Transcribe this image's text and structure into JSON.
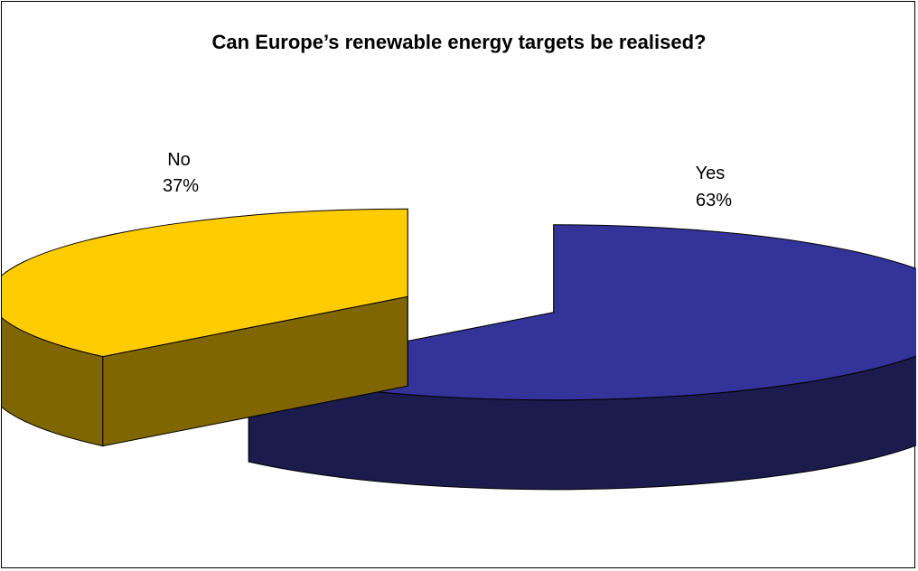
{
  "chart_data": {
    "type": "pie",
    "title": "Can Europe’s renewable energy targets be realised?",
    "three_d": true,
    "exploded": true,
    "slices": [
      {
        "label": "Yes",
        "percent_label": "63%",
        "value": 63,
        "color": "#333399",
        "side_color": "#1B1B4E"
      },
      {
        "label": "No",
        "percent_label": "37%",
        "value": 37,
        "color": "#FFCC00",
        "side_color": "#806600"
      }
    ]
  }
}
